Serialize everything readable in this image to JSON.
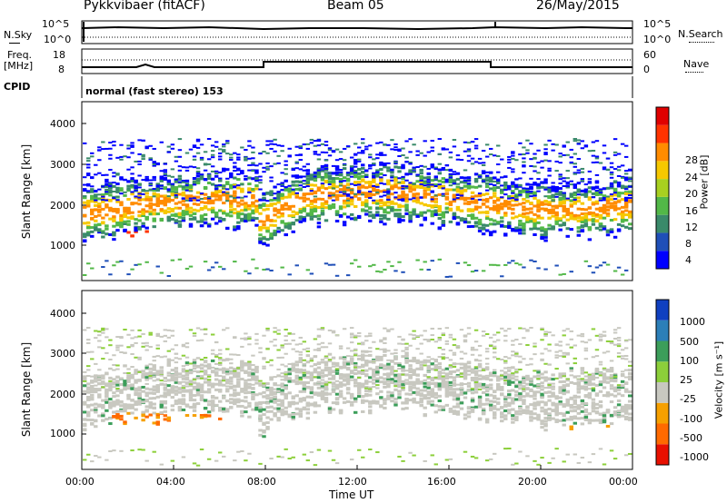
{
  "header": {
    "radar": "Pykkvibaer (fitACF)",
    "beam": "Beam 05",
    "date": "26/May/2015"
  },
  "top_panels": {
    "nsky_label": "N.Sky",
    "nsky_ticks": [
      "10^5",
      "10^0"
    ],
    "nsearch_label": "N.Search",
    "nsearch_ticks": [
      "10^5",
      "10^0"
    ],
    "freq_label_1": "Freq.",
    "freq_label_2": "[MHz]",
    "freq_ticks": [
      "18",
      "8"
    ],
    "nave_label": "Nave",
    "nave_ticks": [
      "60",
      "0"
    ],
    "cpid_label": "CPID",
    "cpid_value": "normal (fast stereo) 153"
  },
  "chart_data": [
    {
      "type": "heatmap",
      "name": "power",
      "ylabel": "Slant Range [km]",
      "xlabel": "",
      "ylim": [
        180,
        4500
      ],
      "yticks": [
        "1000",
        "2000",
        "3000",
        "4000"
      ],
      "xlim": [
        0,
        24
      ],
      "colorbar": {
        "label": "Power [dB]",
        "ticks": [
          "4",
          "8",
          "12",
          "16",
          "20",
          "24",
          "28"
        ],
        "colors": [
          "#0000ff",
          "#1f4fb8",
          "#3a8a6a",
          "#52b848",
          "#a8d020",
          "#f6c800",
          "#ff8c00",
          "#ff3300",
          "#e00000"
        ]
      }
    },
    {
      "type": "heatmap",
      "name": "velocity",
      "ylabel": "Slant Range [km]",
      "xlabel": "Time UT",
      "ylim": [
        180,
        4500
      ],
      "yticks": [
        "1000",
        "2000",
        "3000",
        "4000"
      ],
      "xlim": [
        0,
        24
      ],
      "xticks": [
        "00:00",
        "04:00",
        "08:00",
        "12:00",
        "16:00",
        "20:00",
        "00:00"
      ],
      "colorbar": {
        "label": "Velocity [m s⁻¹]",
        "ticks": [
          "1000",
          "500",
          "100",
          "25",
          "-25",
          "-100",
          "-500",
          "-1000"
        ],
        "colors": [
          "#1040c0",
          "#2c7fb8",
          "#3c9e5a",
          "#8ccf3a",
          "#c8c8c0",
          "#f6a000",
          "#ff6a00",
          "#e81000"
        ]
      }
    }
  ]
}
